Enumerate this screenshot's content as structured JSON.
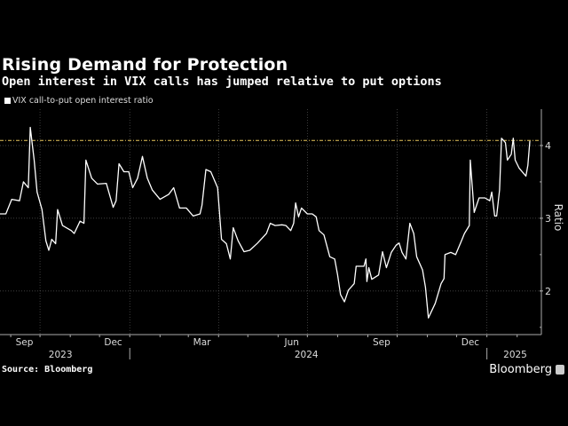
{
  "title": "Rising Demand for Protection",
  "subtitle": "Open interest in VIX calls has jumped relative to put options",
  "source": "Source: Bloomberg",
  "brand": "Bloomberg",
  "colors": {
    "line": "#ffffff",
    "reference": "#e8c65a",
    "grid": "#555555",
    "background": "#000000"
  },
  "chart_data": {
    "type": "line",
    "title": "Rising Demand for Protection",
    "subtitle": "Open interest in VIX calls has jumped relative to put options",
    "ylabel": "Ratio",
    "ylim": [
      1.4,
      4.5
    ],
    "xlim": [
      "2023-08-21",
      "2025-02-24"
    ],
    "yticks": [
      "2",
      "3",
      "4"
    ],
    "xtick_labels": [
      "Sep",
      "Dec",
      "Mar",
      "Jun",
      "Sep",
      "Dec"
    ],
    "xtick_label_dates": [
      "2023-09-15",
      "2023-12-15",
      "2024-03-15",
      "2024-06-15",
      "2024-09-15",
      "2024-12-15"
    ],
    "year_labels": [
      "2023",
      "2024",
      "2025"
    ],
    "year_label_dates": [
      "2023-10-22",
      "2024-06-30",
      "2025-01-30"
    ],
    "grid": true,
    "legend_position": "top-left",
    "reference_line": {
      "value": 4.07,
      "style": "dash-dot",
      "color": "#e8c65a"
    },
    "series": [
      {
        "name": "VIX call-to-put open interest ratio",
        "x": [
          "2023-08-21",
          "2023-08-27",
          "2023-09-02",
          "2023-09-10",
          "2023-09-14",
          "2023-09-19",
          "2023-09-21",
          "2023-09-25",
          "2023-09-28",
          "2023-10-03",
          "2023-10-07",
          "2023-10-10",
          "2023-10-13",
          "2023-10-17",
          "2023-10-19",
          "2023-10-24",
          "2023-11-02",
          "2023-11-05",
          "2023-11-11",
          "2023-11-15",
          "2023-11-17",
          "2023-11-23",
          "2023-11-29",
          "2023-12-08",
          "2023-12-15",
          "2023-12-18",
          "2023-12-21",
          "2023-12-26",
          "2023-12-31",
          "2024-01-04",
          "2024-01-09",
          "2024-01-14",
          "2024-01-19",
          "2024-01-24",
          "2024-02-01",
          "2024-02-10",
          "2024-02-15",
          "2024-02-21",
          "2024-02-28",
          "2024-03-06",
          "2024-03-13",
          "2024-03-15",
          "2024-03-19",
          "2024-03-24",
          "2024-03-31",
          "2024-04-04",
          "2024-04-09",
          "2024-04-13",
          "2024-04-16",
          "2024-04-21",
          "2024-04-27",
          "2024-05-03",
          "2024-05-11",
          "2024-05-20",
          "2024-05-24",
          "2024-05-29",
          "2024-06-05",
          "2024-06-09",
          "2024-06-14",
          "2024-06-17",
          "2024-06-19",
          "2024-06-22",
          "2024-06-25",
          "2024-07-01",
          "2024-07-06",
          "2024-07-10",
          "2024-07-13",
          "2024-07-18",
          "2024-07-24",
          "2024-07-29",
          "2024-08-01",
          "2024-08-04",
          "2024-08-08",
          "2024-08-12",
          "2024-08-18",
          "2024-08-20",
          "2024-08-28",
          "2024-08-30",
          "2024-08-31",
          "2024-09-02",
          "2024-09-05",
          "2024-09-12",
          "2024-09-16",
          "2024-09-20",
          "2024-09-25",
          "2024-09-30",
          "2024-10-03",
          "2024-10-06",
          "2024-10-10",
          "2024-10-14",
          "2024-10-18",
          "2024-10-21",
          "2024-10-27",
          "2024-10-30",
          "2024-11-02",
          "2024-11-09",
          "2024-11-15",
          "2024-11-18",
          "2024-11-19",
          "2024-11-25",
          "2024-11-30",
          "2024-12-06",
          "2024-12-09",
          "2024-12-14",
          "2024-12-15",
          "2024-12-19",
          "2024-12-24",
          "2024-12-30",
          "2025-01-04",
          "2025-01-06",
          "2025-01-09",
          "2025-01-11",
          "2025-01-14",
          "2025-01-16",
          "2025-01-20",
          "2025-01-22",
          "2025-01-26",
          "2025-01-28",
          "2025-01-30",
          "2025-02-03",
          "2025-02-10",
          "2025-02-12",
          "2025-02-14"
        ],
        "values": [
          3.06,
          3.06,
          3.26,
          3.24,
          3.5,
          3.42,
          4.25,
          3.8,
          3.36,
          3.12,
          2.69,
          2.56,
          2.71,
          2.65,
          3.12,
          2.9,
          2.83,
          2.79,
          2.96,
          2.93,
          3.8,
          3.55,
          3.47,
          3.48,
          3.15,
          3.24,
          3.75,
          3.64,
          3.64,
          3.42,
          3.55,
          3.85,
          3.55,
          3.39,
          3.26,
          3.33,
          3.42,
          3.14,
          3.14,
          3.03,
          3.06,
          3.18,
          3.67,
          3.64,
          3.42,
          2.71,
          2.65,
          2.44,
          2.87,
          2.69,
          2.54,
          2.56,
          2.66,
          2.79,
          2.93,
          2.9,
          2.91,
          2.9,
          2.83,
          2.93,
          3.21,
          3.02,
          3.14,
          3.06,
          3.06,
          3.02,
          2.83,
          2.77,
          2.47,
          2.44,
          2.22,
          1.95,
          1.85,
          2.01,
          2.1,
          2.34,
          2.34,
          2.44,
          2.13,
          2.32,
          2.16,
          2.22,
          2.54,
          2.32,
          2.53,
          2.63,
          2.66,
          2.53,
          2.44,
          2.93,
          2.79,
          2.47,
          2.29,
          2.05,
          1.63,
          1.83,
          2.1,
          2.17,
          2.5,
          2.53,
          2.5,
          2.69,
          2.79,
          2.9,
          3.8,
          3.08,
          3.28,
          3.28,
          3.24,
          3.36,
          3.03,
          3.03,
          3.39,
          4.1,
          4.04,
          3.8,
          3.88,
          4.1,
          3.8,
          3.69,
          3.58,
          3.73,
          4.06
        ]
      }
    ]
  }
}
